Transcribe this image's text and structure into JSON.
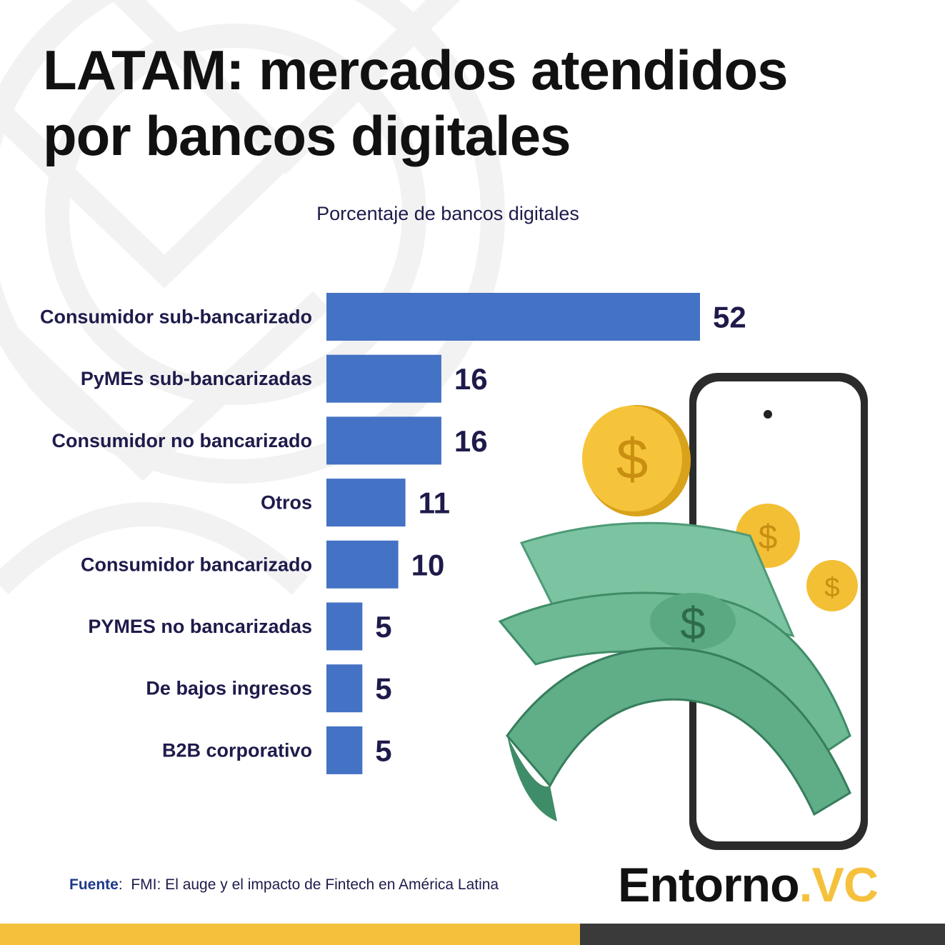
{
  "title": {
    "line1": "LATAM: mercados atendidos",
    "line2": "por bancos digitales"
  },
  "subtitle": "Porcentaje de bancos digitales",
  "chart_data": {
    "type": "bar",
    "orientation": "horizontal",
    "title": "LATAM: mercados atendidos por bancos digitales",
    "xlabel": "Porcentaje de bancos digitales",
    "ylabel": "",
    "xlim": [
      0,
      52
    ],
    "grid": false,
    "bar_color": "#4472c4",
    "categories": [
      "Consumidor sub-bancarizado",
      "PyMEs sub-bancarizadas",
      "Consumidor no bancarizado",
      "Otros",
      "Consumidor bancarizado",
      "PYMES no bancarizadas",
      "De bajos ingresos",
      "B2B corporativo"
    ],
    "values": [
      52,
      16,
      16,
      11,
      10,
      5,
      5,
      5
    ]
  },
  "source": {
    "label": "Fuente",
    "separator": ":",
    "text": "FMI: El auge y el impacto de Fintech en América Latina"
  },
  "brand": {
    "name": "Entorno",
    "accent": ".VC"
  },
  "colors": {
    "accent_yellow": "#f5c13d",
    "dark_bar": "#3a3a3a",
    "text_navy": "#1e1b4b"
  },
  "illustration": {
    "icon": "phone-money-illustration"
  }
}
